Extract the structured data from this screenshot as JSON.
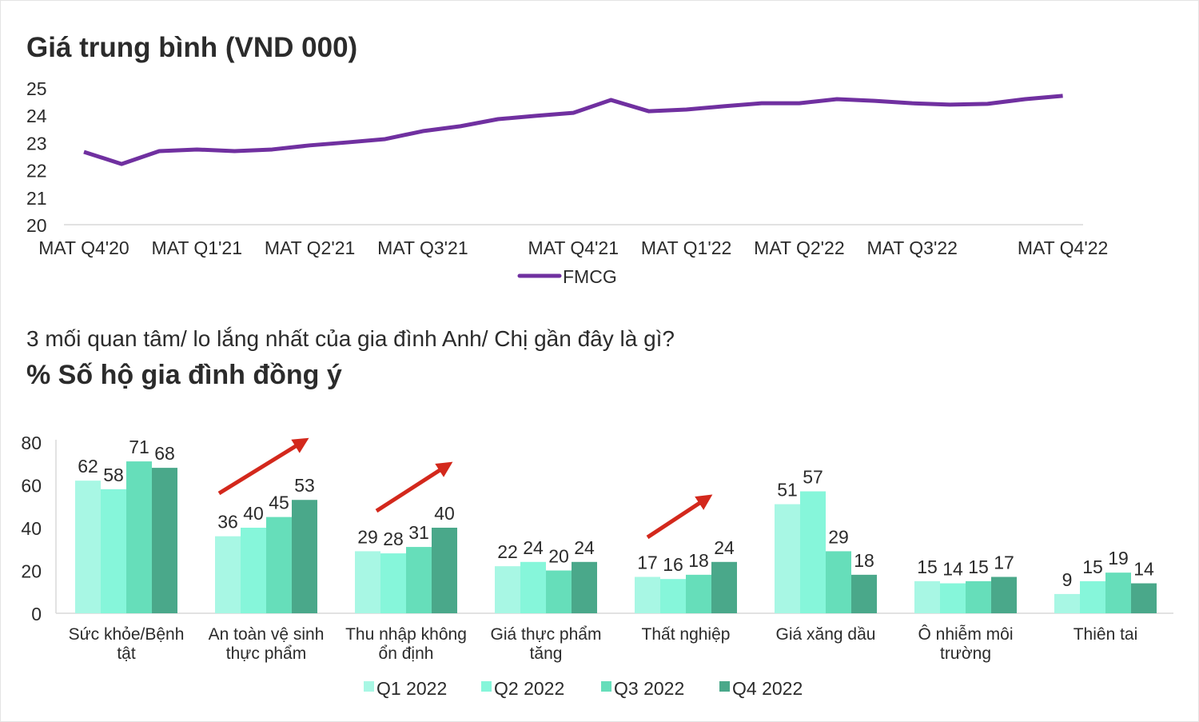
{
  "chart_data": [
    {
      "type": "line",
      "title": "Giá trung bình (VND 000)",
      "ylim": [
        20,
        25
      ],
      "yticks": [
        20,
        21,
        22,
        23,
        24,
        25
      ],
      "x_tick_labels": [
        "MAT Q4'20",
        "",
        "",
        "MAT Q1'21",
        "",
        "",
        "MAT Q2'21",
        "",
        "",
        "MAT Q3'21",
        "",
        "",
        "",
        "MAT Q4'21",
        "",
        "",
        "MAT Q1'22",
        "",
        "",
        "MAT Q2'22",
        "",
        "",
        "MAT Q3'22",
        "",
        "",
        "",
        "MAT Q4'22"
      ],
      "series": [
        {
          "name": "FMCG",
          "color": "#7030a0",
          "values": [
            22.66,
            22.22,
            22.69,
            22.75,
            22.69,
            22.75,
            22.9,
            23.01,
            23.13,
            23.42,
            23.6,
            23.86,
            23.98,
            24.09,
            24.56,
            24.15,
            24.21,
            24.33,
            24.44,
            24.44,
            24.59,
            24.53,
            24.44,
            24.39,
            24.42,
            24.59,
            24.71
          ]
        }
      ],
      "legend": "bottom",
      "grid": false
    },
    {
      "type": "bar",
      "question": "3 mối quan tâm/ lo lắng nhất của gia đình Anh/ Chị gần đây là gì?",
      "title": "% Số hộ gia đình đồng ý",
      "ylim": [
        0,
        80
      ],
      "yticks": [
        0,
        20,
        40,
        60,
        80
      ],
      "categories": [
        [
          "Sức khỏe/Bệnh",
          "tật"
        ],
        [
          "An toàn vệ sinh",
          "thực phẩm"
        ],
        [
          "Thu nhập không",
          "ổn định"
        ],
        [
          "Giá  thực phẩm",
          "tăng"
        ],
        [
          "Thất nghiệp"
        ],
        [
          "Giá  xăng dầu"
        ],
        [
          "Ô nhiễm môi",
          "trường"
        ],
        [
          "Thiên tai"
        ]
      ],
      "series": [
        {
          "name": "Q1   2022",
          "color": "#a8f7e4",
          "values": [
            62,
            36,
            29,
            22,
            17,
            51,
            15,
            9
          ]
        },
        {
          "name": "Q2   2022",
          "color": "#86f6da",
          "values": [
            58,
            40,
            28,
            24,
            16,
            57,
            14,
            15
          ]
        },
        {
          "name": "Q3   2022",
          "color": "#66deba",
          "values": [
            71,
            45,
            31,
            20,
            18,
            29,
            15,
            19
          ]
        },
        {
          "name": "Q4   2022",
          "color": "#4aa88a",
          "values": [
            68,
            53,
            40,
            24,
            24,
            18,
            17,
            14
          ]
        }
      ],
      "annotations": {
        "trend_arrows": [
          "An toàn vệ sinh thực phẩm",
          "Thu nhập không ổn định",
          "Thất nghiệp"
        ],
        "arrow_color": "#d3281c"
      },
      "legend": "bottom",
      "grid": false
    }
  ]
}
